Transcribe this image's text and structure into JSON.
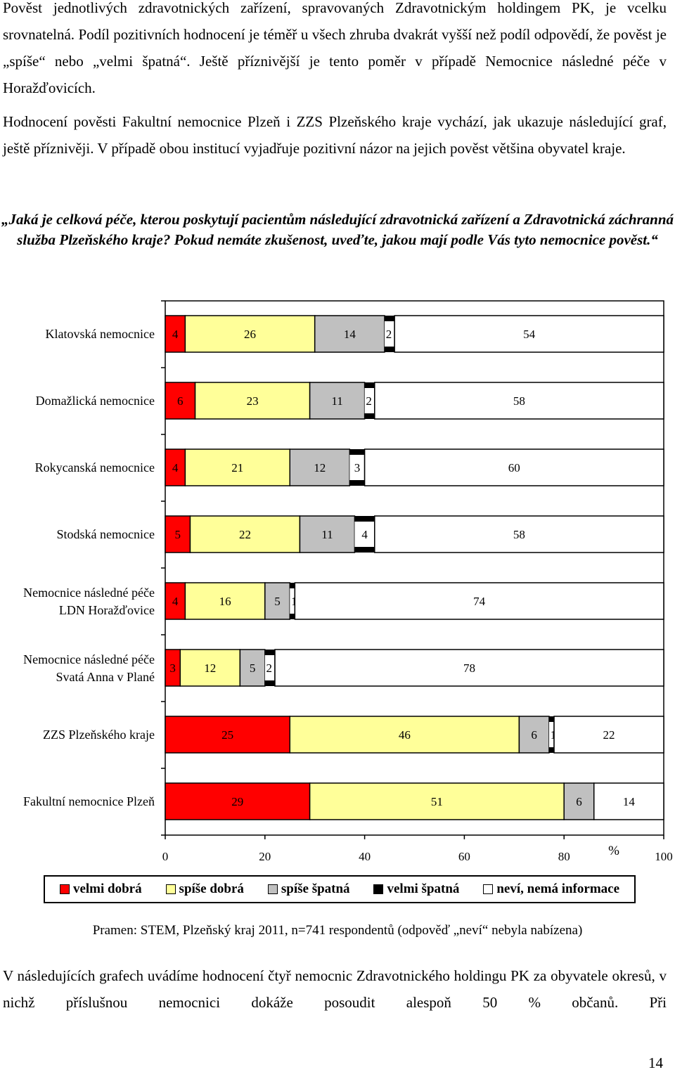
{
  "paragraphs": {
    "intro": "Pověst jednotlivých zdravotnických zařízení, spravovaných Zdravotnickým holdingem PK, je vcelku srovnatelná. Podíl pozitivních hodnocení je téměř u všech zhruba dvakrát vyšší než podíl odpovědí, že pověst je „spíše“ nebo „velmi špatná“. Ještě příznivější je tento poměr v případě Nemocnice následné péče v Horažďovicích.",
    "second": "Hodnocení pověsti Fakultní nemocnice Plzeň i ZZS Plzeňského kraje vychází, jak ukazuje následující graf, ještě příznivěji. V případě obou institucí vyjadřuje pozitivní názor na jejich pověst většina obyvatel kraje.",
    "question": "„Jaká je celková péče, kterou poskytují pacientům následující zdravotnická zařízení a Zdravotnická záchranná služba Plzeňského kraje? Pokud nemáte zkušenost, uveďte, jakou mají podle Vás tyto nemocnice pověst.“",
    "closing": "V následujících grafech uvádíme hodnocení čtyř nemocnic Zdravotnického holdingu PK za obyvatele okresů, v nichž příslušnou nemocnici dokáže posoudit alespoň 50 % občanů. Při"
  },
  "source_note": "Pramen: STEM, Plzeňský kraj 2011,  n=741 respondentů (odpověď „neví“ nebyla nabízena)",
  "page_number": "14",
  "chart_data": {
    "type": "bar",
    "orientation": "horizontal",
    "stacked": true,
    "categories": [
      "Klatovská nemocnice",
      "Domažlická nemocnice",
      "Rokycanská nemocnice",
      "Stodská nemocnice",
      "Nemocnice následné péče LDN Horažďovice",
      "Nemocnice následné péče Svatá Anna v Plané",
      "ZZS Plzeňského kraje",
      "Fakultní nemocnice Plzeň"
    ],
    "series": [
      {
        "name": "velmi dobrá",
        "color": "#ff0000",
        "values": [
          4,
          6,
          4,
          5,
          4,
          3,
          25,
          29
        ]
      },
      {
        "name": "spíše dobrá",
        "color": "#ffff99",
        "values": [
          26,
          23,
          21,
          22,
          16,
          12,
          46,
          51
        ]
      },
      {
        "name": "spíše špatná",
        "color": "#c0c0c0",
        "values": [
          14,
          11,
          12,
          11,
          5,
          5,
          6,
          6
        ]
      },
      {
        "name": "velmi špatná",
        "color": "#000000",
        "values": [
          2,
          2,
          3,
          4,
          1,
          2,
          1,
          0
        ]
      },
      {
        "name": "neví, nemá informace",
        "color": "#ffffff",
        "values": [
          54,
          58,
          60,
          58,
          74,
          78,
          22,
          14
        ]
      }
    ],
    "xlim": [
      0,
      100
    ],
    "xticks": [
      0,
      20,
      40,
      60,
      80,
      100
    ],
    "xlabel": "%",
    "legend_position": "bottom"
  }
}
